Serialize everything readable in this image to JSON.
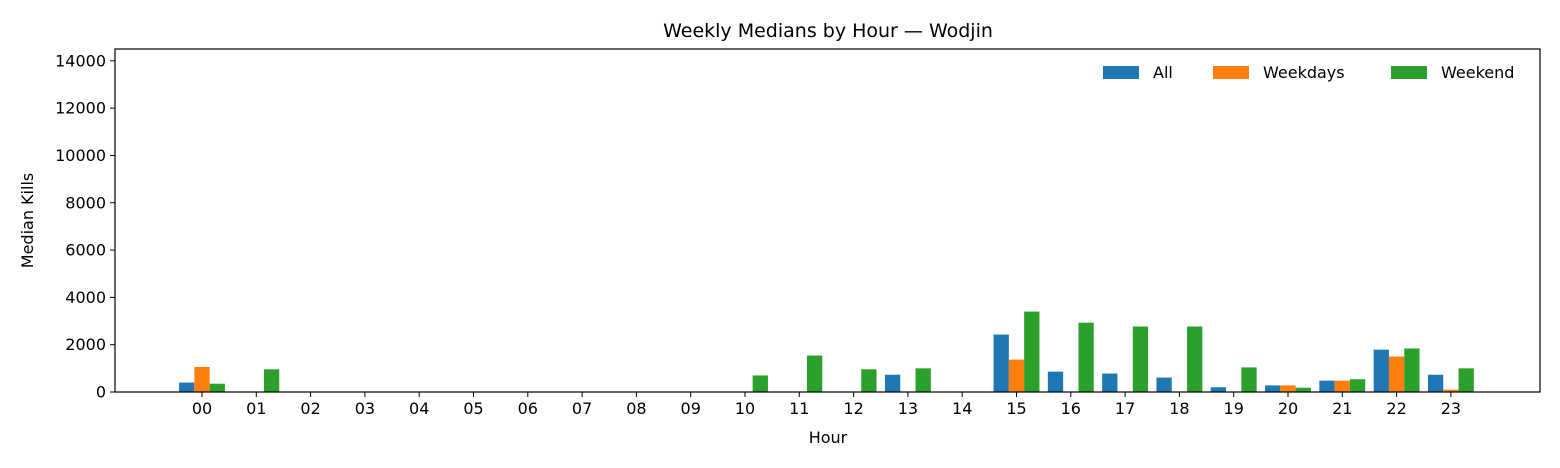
{
  "chart_data": {
    "type": "bar",
    "title": "Weekly Medians by Hour — Wodjin",
    "xlabel": "Hour",
    "ylabel": "Median Kills",
    "ylim": [
      0,
      14500
    ],
    "yticks": [
      0,
      2000,
      4000,
      6000,
      8000,
      10000,
      12000,
      14000
    ],
    "categories": [
      "00",
      "01",
      "02",
      "03",
      "04",
      "05",
      "06",
      "07",
      "08",
      "09",
      "10",
      "11",
      "12",
      "13",
      "14",
      "15",
      "16",
      "17",
      "18",
      "19",
      "20",
      "21",
      "22",
      "23"
    ],
    "series": [
      {
        "name": "All",
        "color": "#1f77b4",
        "values": [
          400,
          0,
          0,
          0,
          0,
          0,
          0,
          0,
          0,
          0,
          0,
          0,
          0,
          730,
          0,
          2430,
          860,
          780,
          610,
          200,
          280,
          480,
          1790,
          730
        ]
      },
      {
        "name": "Weekdays",
        "color": "#ff7f0e",
        "values": [
          1060,
          0,
          0,
          0,
          0,
          0,
          0,
          0,
          0,
          0,
          0,
          0,
          0,
          0,
          0,
          1370,
          0,
          0,
          0,
          0,
          280,
          480,
          1500,
          100
        ]
      },
      {
        "name": "Weekend",
        "color": "#2ca02c",
        "values": [
          350,
          960,
          0,
          0,
          0,
          0,
          0,
          0,
          0,
          0,
          700,
          1540,
          960,
          1000,
          0,
          3400,
          2930,
          2770,
          2770,
          1040,
          180,
          540,
          1840,
          1000
        ]
      }
    ],
    "grid": false,
    "legend": "top-right"
  }
}
